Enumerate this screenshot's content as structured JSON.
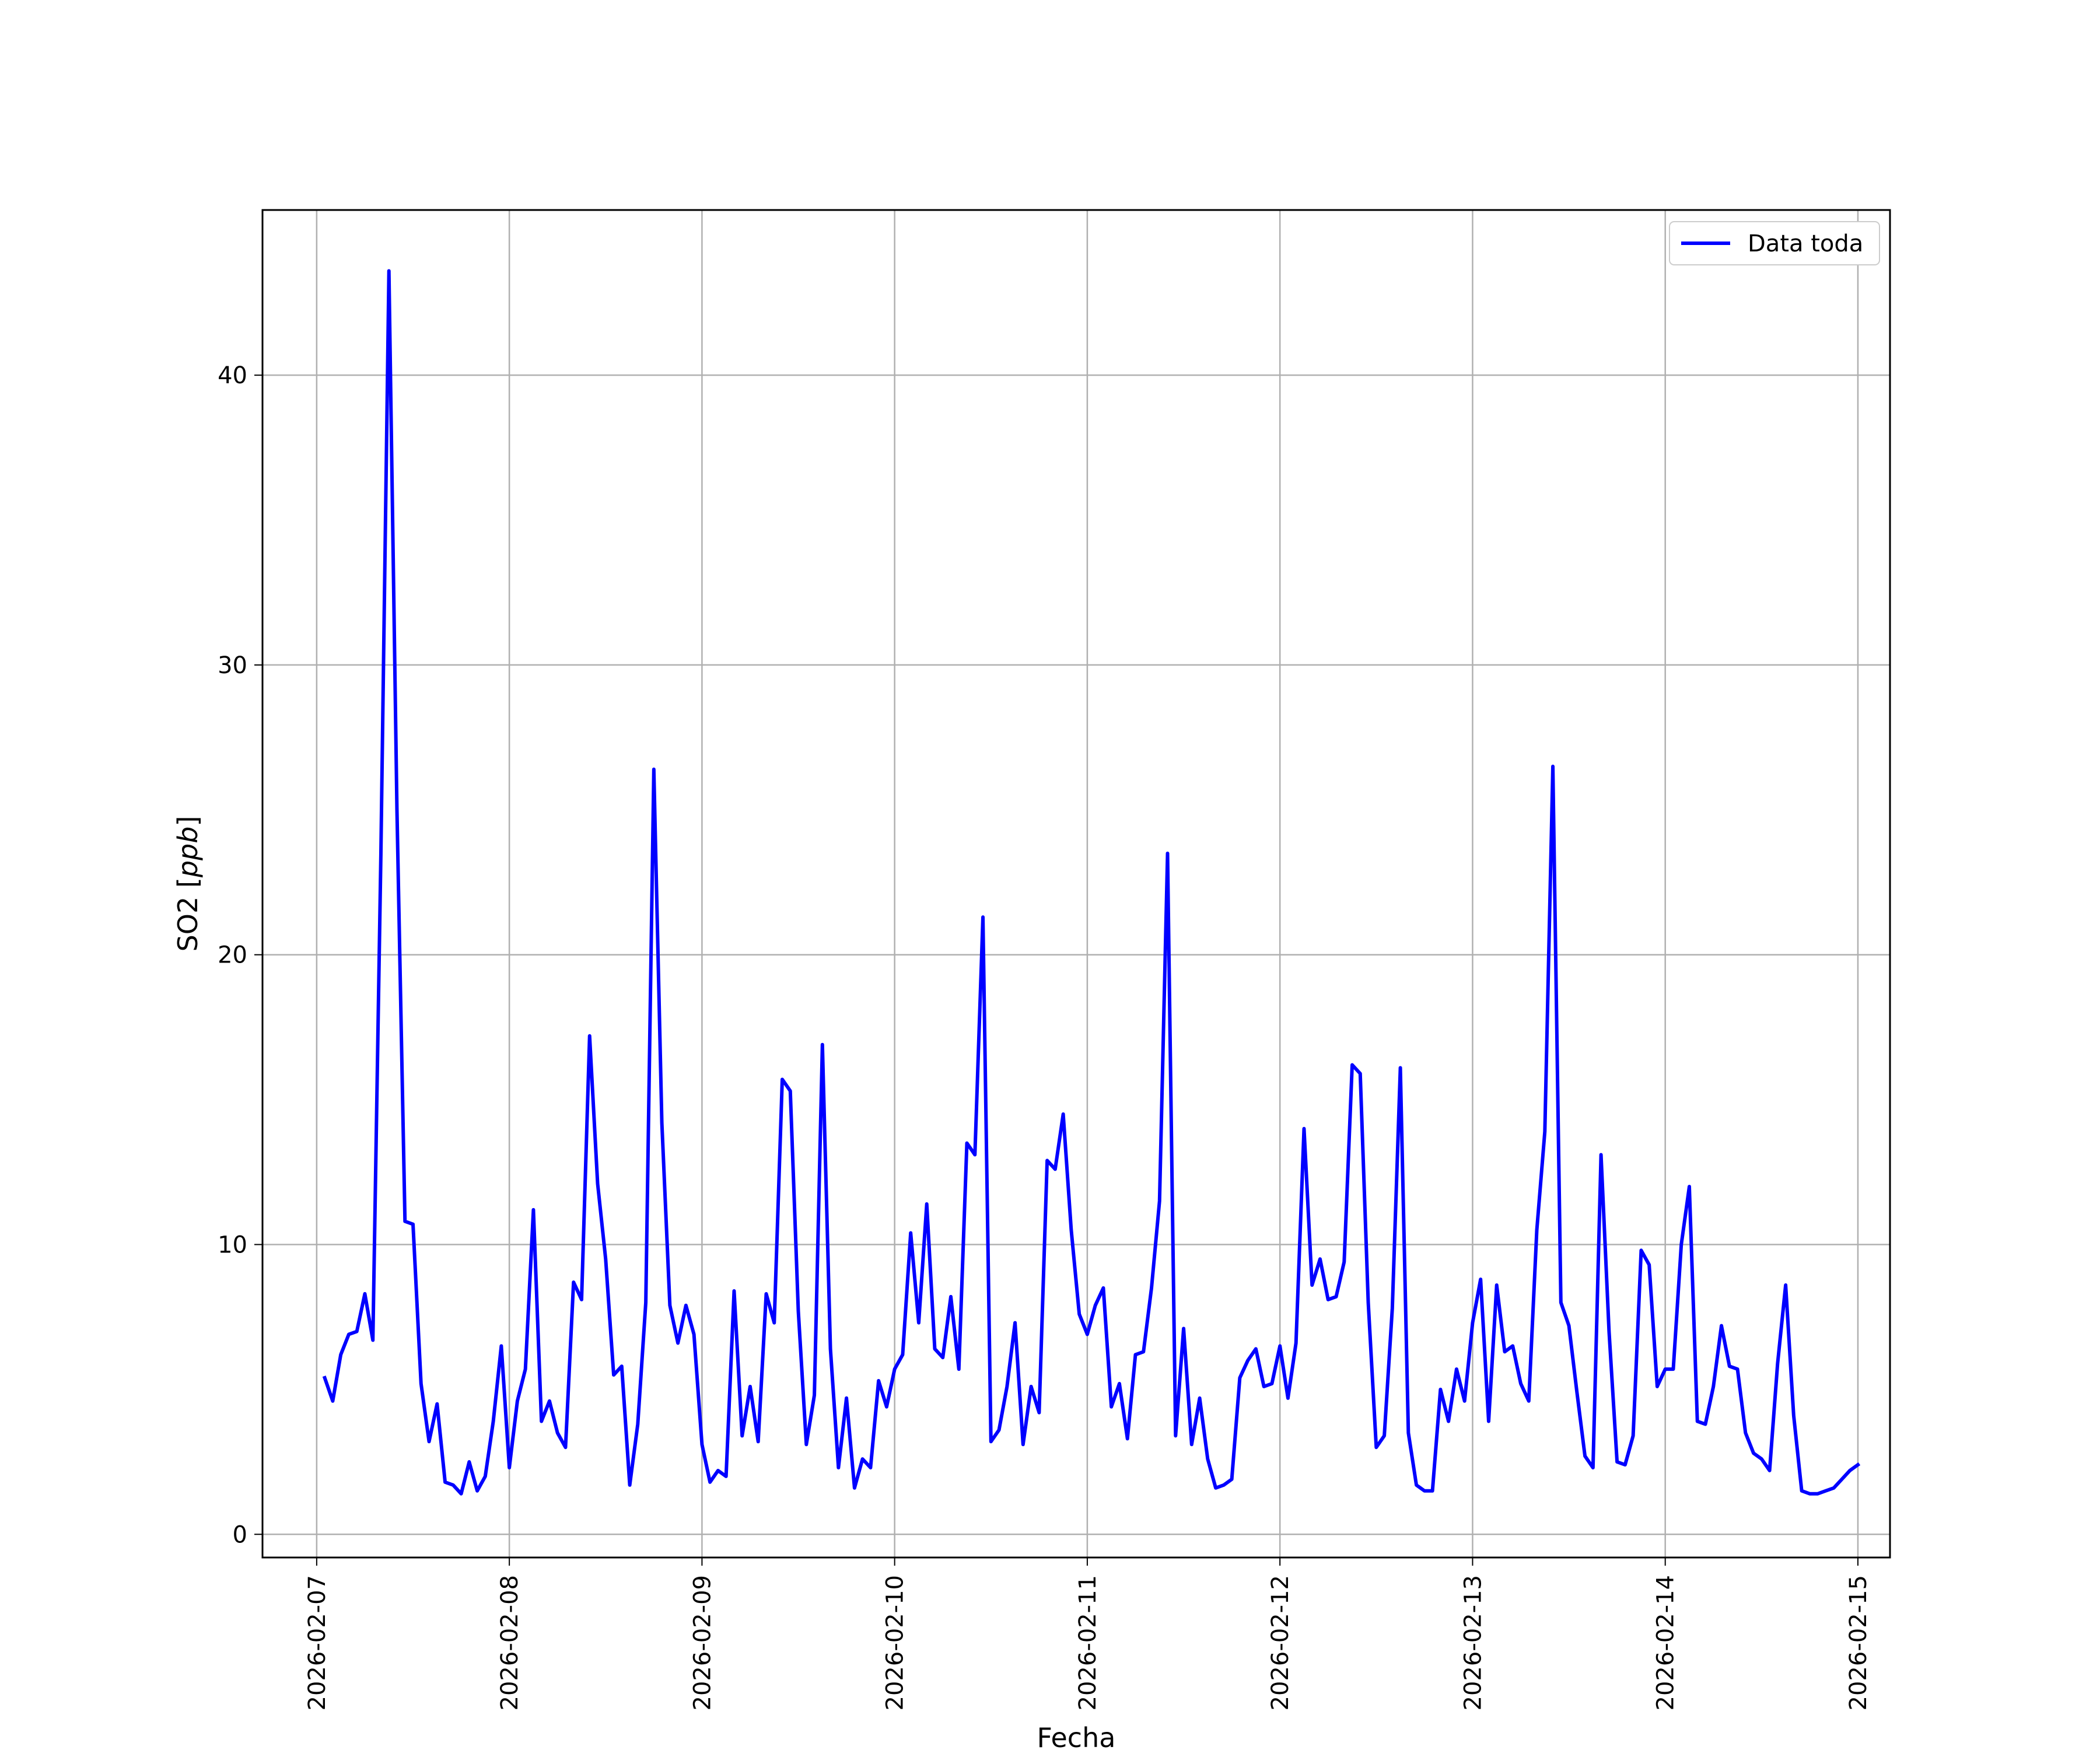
{
  "chart_data": {
    "type": "line",
    "title": "",
    "xlabel": "Fecha",
    "ylabel_main": "SO2 [",
    "ylabel_unit": "ppb",
    "ylabel_close": "]",
    "xlim": [
      "2026-02-06T17:15",
      "2026-02-15T04:00"
    ],
    "ylim": [
      -0.8,
      45.7
    ],
    "grid": true,
    "legend_position": "top-right",
    "x_ticks": [
      "2026-02-07",
      "2026-02-08",
      "2026-02-09",
      "2026-02-10",
      "2026-02-11",
      "2026-02-12",
      "2026-02-13",
      "2026-02-14",
      "2026-02-15"
    ],
    "y_ticks": [
      "0",
      "10",
      "20",
      "30",
      "40"
    ],
    "series": [
      {
        "name": "Data toda",
        "color": "#0000ff",
        "x": [
          "2026-02-07T01:00",
          "2026-02-07T02:00",
          "2026-02-07T03:00",
          "2026-02-07T04:00",
          "2026-02-07T05:00",
          "2026-02-07T06:00",
          "2026-02-07T07:00",
          "2026-02-07T08:00",
          "2026-02-07T09:00",
          "2026-02-07T10:00",
          "2026-02-07T11:00",
          "2026-02-07T12:00",
          "2026-02-07T13:00",
          "2026-02-07T14:00",
          "2026-02-07T15:00",
          "2026-02-07T16:00",
          "2026-02-07T17:00",
          "2026-02-07T18:00",
          "2026-02-07T19:00",
          "2026-02-07T20:00",
          "2026-02-07T21:00",
          "2026-02-07T22:00",
          "2026-02-07T23:00",
          "2026-02-08T00:00",
          "2026-02-08T01:00",
          "2026-02-08T02:00",
          "2026-02-08T03:00",
          "2026-02-08T04:00",
          "2026-02-08T05:00",
          "2026-02-08T06:00",
          "2026-02-08T07:00",
          "2026-02-08T08:00",
          "2026-02-08T09:00",
          "2026-02-08T10:00",
          "2026-02-08T11:00",
          "2026-02-08T12:00",
          "2026-02-08T13:00",
          "2026-02-08T14:00",
          "2026-02-08T15:00",
          "2026-02-08T16:00",
          "2026-02-08T17:00",
          "2026-02-08T18:00",
          "2026-02-08T19:00",
          "2026-02-08T20:00",
          "2026-02-08T21:00",
          "2026-02-08T22:00",
          "2026-02-08T23:00",
          "2026-02-09T00:00",
          "2026-02-09T01:00",
          "2026-02-09T02:00",
          "2026-02-09T03:00",
          "2026-02-09T04:00",
          "2026-02-09T05:00",
          "2026-02-09T06:00",
          "2026-02-09T07:00",
          "2026-02-09T08:00",
          "2026-02-09T09:00",
          "2026-02-09T10:00",
          "2026-02-09T11:00",
          "2026-02-09T12:00",
          "2026-02-09T13:00",
          "2026-02-09T14:00",
          "2026-02-09T15:00",
          "2026-02-09T16:00",
          "2026-02-09T17:00",
          "2026-02-09T18:00",
          "2026-02-09T19:00",
          "2026-02-09T20:00",
          "2026-02-09T21:00",
          "2026-02-09T22:00",
          "2026-02-09T23:00",
          "2026-02-10T00:00",
          "2026-02-10T01:00",
          "2026-02-10T02:00",
          "2026-02-10T03:00",
          "2026-02-10T04:00",
          "2026-02-10T05:00",
          "2026-02-10T06:00",
          "2026-02-10T07:00",
          "2026-02-10T08:00",
          "2026-02-10T09:00",
          "2026-02-10T10:00",
          "2026-02-10T11:00",
          "2026-02-10T12:00",
          "2026-02-10T13:00",
          "2026-02-10T14:00",
          "2026-02-10T15:00",
          "2026-02-10T16:00",
          "2026-02-10T17:00",
          "2026-02-10T18:00",
          "2026-02-10T19:00",
          "2026-02-10T20:00",
          "2026-02-10T21:00",
          "2026-02-10T22:00",
          "2026-02-10T23:00",
          "2026-02-11T00:00",
          "2026-02-11T01:00",
          "2026-02-11T02:00",
          "2026-02-11T03:00",
          "2026-02-11T04:00",
          "2026-02-11T05:00",
          "2026-02-11T06:00",
          "2026-02-11T07:00",
          "2026-02-11T08:00",
          "2026-02-11T09:00",
          "2026-02-11T10:00",
          "2026-02-11T11:00",
          "2026-02-11T12:00",
          "2026-02-11T13:00",
          "2026-02-11T14:00",
          "2026-02-11T15:00",
          "2026-02-11T16:00",
          "2026-02-11T17:00",
          "2026-02-11T18:00",
          "2026-02-11T19:00",
          "2026-02-11T20:00",
          "2026-02-11T21:00",
          "2026-02-11T22:00",
          "2026-02-11T23:00",
          "2026-02-12T00:00",
          "2026-02-12T01:00",
          "2026-02-12T02:00",
          "2026-02-12T03:00",
          "2026-02-12T04:00",
          "2026-02-12T05:00",
          "2026-02-12T06:00",
          "2026-02-12T07:00",
          "2026-02-12T08:00",
          "2026-02-12T09:00",
          "2026-02-12T10:00",
          "2026-02-12T11:00",
          "2026-02-12T12:00",
          "2026-02-12T13:00",
          "2026-02-12T14:00",
          "2026-02-12T15:00",
          "2026-02-12T16:00",
          "2026-02-12T17:00",
          "2026-02-12T18:00",
          "2026-02-12T19:00",
          "2026-02-12T20:00",
          "2026-02-12T21:00",
          "2026-02-12T22:00",
          "2026-02-12T23:00",
          "2026-02-13T00:00",
          "2026-02-13T01:00",
          "2026-02-13T02:00",
          "2026-02-13T03:00",
          "2026-02-13T04:00",
          "2026-02-13T05:00",
          "2026-02-13T06:00",
          "2026-02-13T07:00",
          "2026-02-13T08:00",
          "2026-02-13T09:00",
          "2026-02-13T10:00",
          "2026-02-13T11:00",
          "2026-02-13T12:00",
          "2026-02-13T13:00",
          "2026-02-13T14:00",
          "2026-02-13T15:00",
          "2026-02-13T16:00",
          "2026-02-13T17:00",
          "2026-02-13T18:00",
          "2026-02-13T19:00",
          "2026-02-13T20:00",
          "2026-02-13T21:00",
          "2026-02-13T22:00",
          "2026-02-13T23:00",
          "2026-02-14T00:00",
          "2026-02-14T01:00",
          "2026-02-14T02:00",
          "2026-02-14T03:00",
          "2026-02-14T04:00",
          "2026-02-14T05:00",
          "2026-02-14T06:00",
          "2026-02-14T07:00",
          "2026-02-14T08:00",
          "2026-02-14T09:00",
          "2026-02-14T10:00",
          "2026-02-14T11:00",
          "2026-02-14T12:00",
          "2026-02-14T13:00",
          "2026-02-14T14:00",
          "2026-02-14T15:00",
          "2026-02-14T16:00",
          "2026-02-14T17:00",
          "2026-02-14T18:00",
          "2026-02-14T19:00",
          "2026-02-14T20:00",
          "2026-02-14T21:00",
          "2026-02-14T22:00",
          "2026-02-14T23:00",
          "2026-02-15T00:00"
        ],
        "values": [
          5.4,
          4.6,
          6.2,
          6.9,
          7.0,
          8.3,
          6.7,
          23.5,
          43.6,
          25.0,
          10.8,
          10.7,
          5.2,
          3.2,
          4.5,
          1.8,
          1.7,
          1.4,
          2.5,
          1.5,
          2.0,
          3.9,
          6.5,
          2.3,
          4.6,
          5.7,
          11.2,
          3.9,
          4.6,
          3.5,
          3.0,
          8.7,
          8.1,
          17.2,
          12.1,
          9.5,
          5.5,
          5.8,
          1.7,
          3.8,
          8.0,
          26.4,
          14.2,
          7.9,
          6.6,
          7.9,
          6.9,
          3.1,
          1.8,
          2.2,
          2.0,
          8.4,
          3.4,
          5.1,
          3.2,
          8.3,
          7.3,
          15.7,
          15.3,
          7.7,
          3.1,
          4.8,
          16.9,
          6.4,
          2.3,
          4.7,
          1.6,
          2.6,
          2.3,
          5.3,
          4.4,
          5.7,
          6.2,
          10.4,
          7.3,
          11.4,
          6.4,
          6.1,
          8.2,
          5.7,
          13.5,
          13.1,
          21.3,
          3.2,
          3.6,
          5.1,
          7.3,
          3.1,
          5.1,
          4.2,
          12.9,
          12.6,
          14.5,
          10.5,
          7.6,
          6.9,
          7.9,
          8.5,
          4.4,
          5.2,
          3.3,
          6.2,
          6.3,
          8.5,
          11.5,
          23.5,
          3.4,
          7.1,
          3.1,
          4.7,
          2.6,
          1.6,
          1.7,
          1.9,
          5.4,
          6.0,
          6.4,
          5.1,
          5.2,
          6.5,
          4.7,
          6.6,
          14.0,
          8.6,
          9.5,
          8.1,
          8.2,
          9.4,
          16.2,
          15.9,
          8.0,
          3.0,
          3.4,
          7.8,
          16.1,
          3.5,
          1.7,
          1.5,
          1.5,
          5.0,
          3.9,
          5.7,
          4.6,
          7.3,
          8.8,
          3.9,
          8.6,
          6.3,
          6.5,
          5.2,
          4.6,
          10.5,
          13.9,
          26.5,
          8.0,
          7.2,
          4.9,
          2.7,
          2.3,
          13.1,
          7.0,
          2.5,
          2.4,
          3.4,
          9.8,
          9.3,
          5.1,
          5.7,
          5.7,
          10.0,
          12.0,
          3.9,
          3.8,
          5.1,
          7.2,
          5.8,
          5.7,
          3.5,
          2.8,
          2.6,
          2.2,
          5.9,
          8.6,
          4.1,
          1.5,
          1.4,
          1.4,
          1.5,
          1.6,
          1.9,
          2.2,
          2.4
        ]
      }
    ]
  }
}
